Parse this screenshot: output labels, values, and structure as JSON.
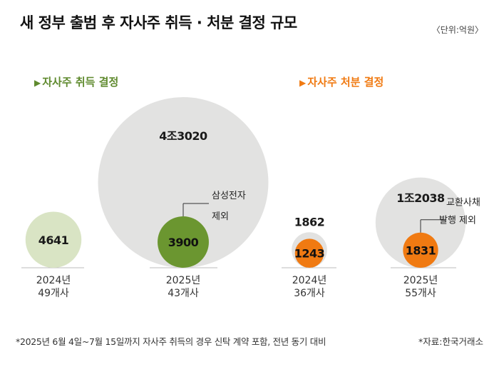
{
  "title": "새 정부 출범 후 자사주 취득 · 처분 결정 규모",
  "unit": "〈단위:억원〉",
  "sections": {
    "acquisition": {
      "label": "자사주 취득 결정",
      "color": "#5f8a2e"
    },
    "disposal": {
      "label": "자사주 처분 결정",
      "color": "#f07a12"
    }
  },
  "footnote": "*2025년 6월 4일~7월 15일까지 자사주 취득의 경우 신탁 계약 포함, 전년 동기 대비",
  "source": "*자료:한국거래소",
  "colors": {
    "outer_circle": "#e2e2e1",
    "acq_2024": "#d9e4c4",
    "acq_2025": "#6b9630",
    "disp_2025": "#f07a12",
    "baseline": "#bdbdbd"
  },
  "chart_data": {
    "type": "bubble",
    "groups": [
      {
        "name": "자사주 취득 결정",
        "items": [
          {
            "year_label": "2024년",
            "count_label": "49개사",
            "total": 4641,
            "total_label": "4641",
            "highlight": null,
            "highlight_label": null,
            "annotation": null
          },
          {
            "year_label": "2025년",
            "count_label": "43개사",
            "total": 43020,
            "total_label": "4조3020",
            "highlight": 3900,
            "highlight_label": "3900",
            "annotation": [
              "삼성전자",
              "제외"
            ]
          }
        ]
      },
      {
        "name": "자사주 처분 결정",
        "items": [
          {
            "year_label": "2024년",
            "count_label": "36개사",
            "total": 1862,
            "total_label": "1862",
            "highlight": 1243,
            "highlight_label": "1243",
            "annotation": null
          },
          {
            "year_label": "2025년",
            "count_label": "55개사",
            "total": 12038,
            "total_label": "1조2038",
            "highlight": 1831,
            "highlight_label": "1831",
            "annotation": [
              "교환사채",
              "발행 제외"
            ]
          }
        ]
      }
    ]
  }
}
